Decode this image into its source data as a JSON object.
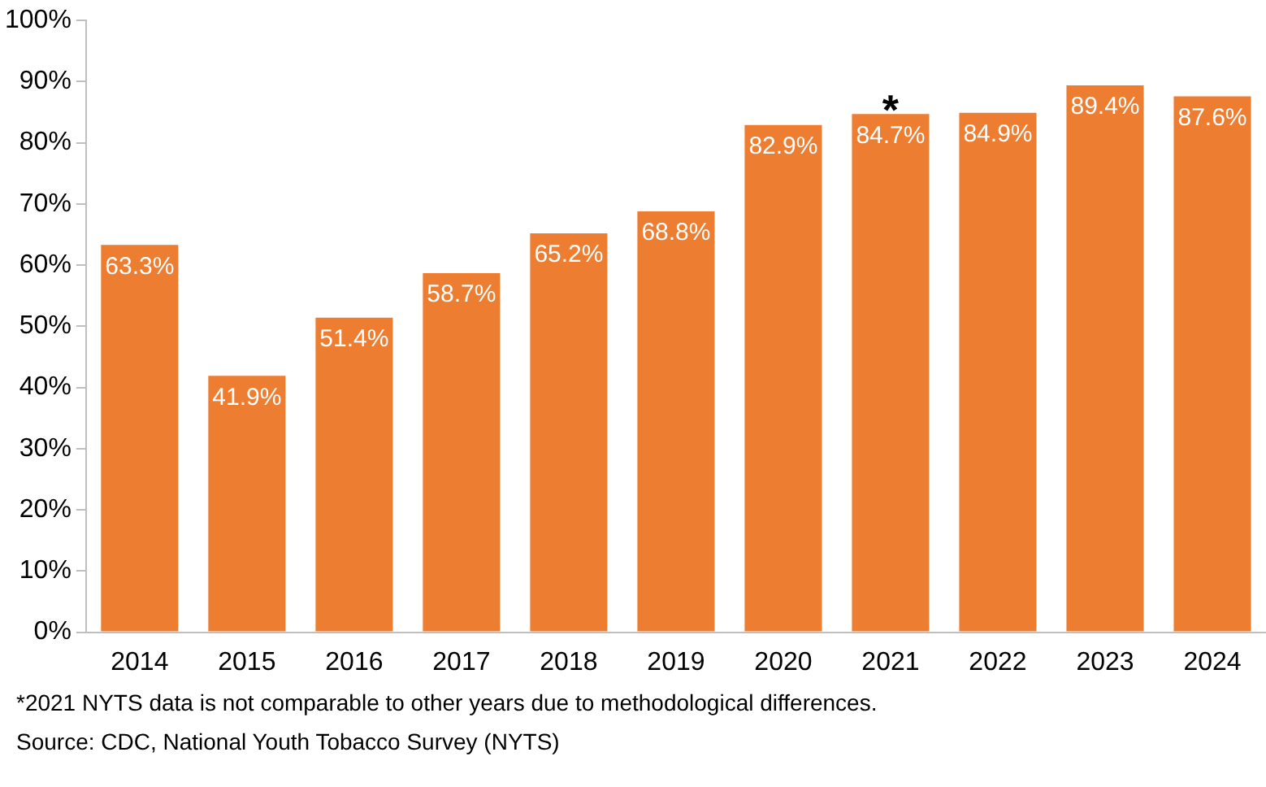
{
  "chart_data": {
    "type": "bar",
    "categories": [
      "2014",
      "2015",
      "2016",
      "2017",
      "2018",
      "2019",
      "2020",
      "2021",
      "2022",
      "2023",
      "2024"
    ],
    "values": [
      63.3,
      41.9,
      51.4,
      58.7,
      65.2,
      68.8,
      82.9,
      84.7,
      84.9,
      89.4,
      87.6
    ],
    "value_labels": [
      "63.3%",
      "41.9%",
      "51.4%",
      "58.7%",
      "65.2%",
      "68.8%",
      "82.9%",
      "84.7%",
      "84.9%",
      "89.4%",
      "87.6%"
    ],
    "color": "#ed7d31",
    "ylim": [
      0,
      100
    ],
    "yticks": [
      {
        "value": 0,
        "label": "0%"
      },
      {
        "value": 10,
        "label": "10%"
      },
      {
        "value": 20,
        "label": "20%"
      },
      {
        "value": 30,
        "label": "30%"
      },
      {
        "value": 40,
        "label": "40%"
      },
      {
        "value": 50,
        "label": "50%"
      },
      {
        "value": 60,
        "label": "60%"
      },
      {
        "value": 70,
        "label": "70%"
      },
      {
        "value": 80,
        "label": "80%"
      },
      {
        "value": 90,
        "label": "90%"
      },
      {
        "value": 100,
        "label": "100%"
      }
    ],
    "grid": false,
    "legend": false,
    "annotations": [
      {
        "text": "*",
        "x": "2021",
        "y": 84.7
      },
      "*2021 NYTS data is not comparable to other years due to methodological differences.",
      "Source:  CDC, National Youth Tobacco Survey (NYTS)"
    ]
  }
}
